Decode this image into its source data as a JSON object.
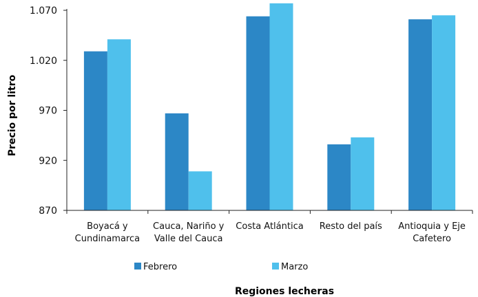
{
  "chart_data": {
    "type": "bar",
    "categories": [
      [
        "Boyacá y",
        "Cundinamarca"
      ],
      [
        "Cauca, Nariño y",
        "Valle del Cauca"
      ],
      [
        "Costa Atlántica"
      ],
      [
        "Resto del país"
      ],
      [
        "Antioquia y Eje",
        "Cafetero"
      ]
    ],
    "series": [
      {
        "name": "Febrero",
        "color": "#2c87c6",
        "values": [
          1029,
          967,
          1064,
          936,
          1061
        ]
      },
      {
        "name": "Marzo",
        "color": "#4fc0ec",
        "values": [
          1041,
          909,
          1077,
          943,
          1065
        ]
      }
    ],
    "xlabel": "Regiones lecheras",
    "ylabel": "Precio por litro",
    "ylim": [
      870,
      1070
    ],
    "yticks": [
      870,
      920,
      970,
      1020,
      1070
    ],
    "ytick_labels": [
      "870",
      "920",
      "970",
      "1.020",
      "1.070"
    ],
    "grid": false,
    "legend_position": "bottom"
  }
}
